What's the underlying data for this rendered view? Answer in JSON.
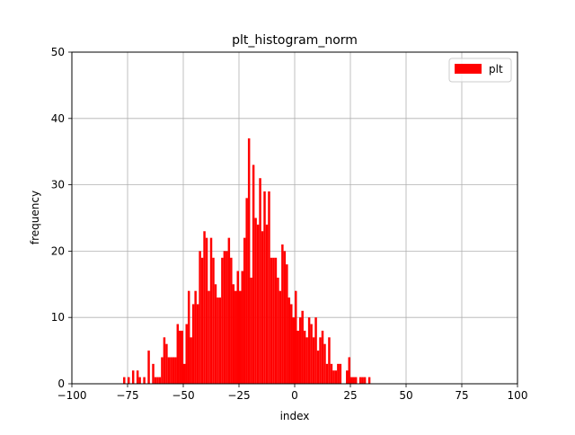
{
  "chart_data": {
    "type": "bar",
    "title": "plt_histogram_norm",
    "xlabel": "index",
    "ylabel": "frequency",
    "xlim": [
      -100,
      100
    ],
    "ylim": [
      0,
      50
    ],
    "xticks": [
      -100,
      -75,
      -50,
      -25,
      0,
      25,
      50,
      75,
      100
    ],
    "xtick_labels": [
      "−100",
      "−75",
      "−50",
      "−25",
      "0",
      "25",
      "50",
      "75",
      "100"
    ],
    "yticks": [
      0,
      10,
      20,
      30,
      40,
      50
    ],
    "ytick_labels": [
      "0",
      "10",
      "20",
      "30",
      "40",
      "50"
    ],
    "grid": true,
    "legend": {
      "position": "upper right",
      "entries": [
        "plt"
      ]
    },
    "bar_color": "#ff0000",
    "bin_width": 1,
    "series": [
      {
        "name": "plt",
        "bins": [
          [
            -77,
            1
          ],
          [
            -75,
            1
          ],
          [
            -73,
            2
          ],
          [
            -71,
            2
          ],
          [
            -70,
            1
          ],
          [
            -68,
            1
          ],
          [
            -66,
            5
          ],
          [
            -64,
            3
          ],
          [
            -63,
            1
          ],
          [
            -62,
            1
          ],
          [
            -61,
            1
          ],
          [
            -60,
            4
          ],
          [
            -59,
            7
          ],
          [
            -58,
            6
          ],
          [
            -57,
            4
          ],
          [
            -56,
            4
          ],
          [
            -55,
            4
          ],
          [
            -54,
            4
          ],
          [
            -53,
            9
          ],
          [
            -52,
            8
          ],
          [
            -51,
            8
          ],
          [
            -50,
            3
          ],
          [
            -49,
            9
          ],
          [
            -48,
            14
          ],
          [
            -47,
            7
          ],
          [
            -46,
            12
          ],
          [
            -45,
            14
          ],
          [
            -44,
            12
          ],
          [
            -43,
            20
          ],
          [
            -42,
            19
          ],
          [
            -41,
            23
          ],
          [
            -40,
            22
          ],
          [
            -39,
            14
          ],
          [
            -38,
            22
          ],
          [
            -37,
            19
          ],
          [
            -36,
            15
          ],
          [
            -35,
            13
          ],
          [
            -34,
            13
          ],
          [
            -33,
            19
          ],
          [
            -32,
            20
          ],
          [
            -31,
            20
          ],
          [
            -30,
            22
          ],
          [
            -29,
            19
          ],
          [
            -28,
            15
          ],
          [
            -27,
            14
          ],
          [
            -26,
            17
          ],
          [
            -25,
            14
          ],
          [
            -24,
            17
          ],
          [
            -23,
            22
          ],
          [
            -22,
            28
          ],
          [
            -21,
            37
          ],
          [
            -20,
            16
          ],
          [
            -19,
            33
          ],
          [
            -18,
            25
          ],
          [
            -17,
            24
          ],
          [
            -16,
            31
          ],
          [
            -15,
            23
          ],
          [
            -14,
            29
          ],
          [
            -13,
            24
          ],
          [
            -12,
            29
          ],
          [
            -11,
            19
          ],
          [
            -10,
            19
          ],
          [
            -9,
            19
          ],
          [
            -8,
            16
          ],
          [
            -7,
            14
          ],
          [
            -6,
            21
          ],
          [
            -5,
            20
          ],
          [
            -4,
            18
          ],
          [
            -3,
            13
          ],
          [
            -2,
            12
          ],
          [
            -1,
            10
          ],
          [
            0,
            14
          ],
          [
            1,
            8
          ],
          [
            2,
            10
          ],
          [
            3,
            11
          ],
          [
            4,
            8
          ],
          [
            5,
            7
          ],
          [
            6,
            10
          ],
          [
            7,
            9
          ],
          [
            8,
            7
          ],
          [
            9,
            10
          ],
          [
            10,
            5
          ],
          [
            11,
            7
          ],
          [
            12,
            8
          ],
          [
            13,
            6
          ],
          [
            14,
            3
          ],
          [
            15,
            7
          ],
          [
            16,
            3
          ],
          [
            17,
            2
          ],
          [
            18,
            2
          ],
          [
            19,
            3
          ],
          [
            20,
            3
          ],
          [
            23,
            2
          ],
          [
            24,
            4
          ],
          [
            25,
            1
          ],
          [
            26,
            1
          ],
          [
            27,
            1
          ],
          [
            29,
            1
          ],
          [
            30,
            1
          ],
          [
            31,
            1
          ],
          [
            33,
            1
          ]
        ]
      }
    ]
  }
}
